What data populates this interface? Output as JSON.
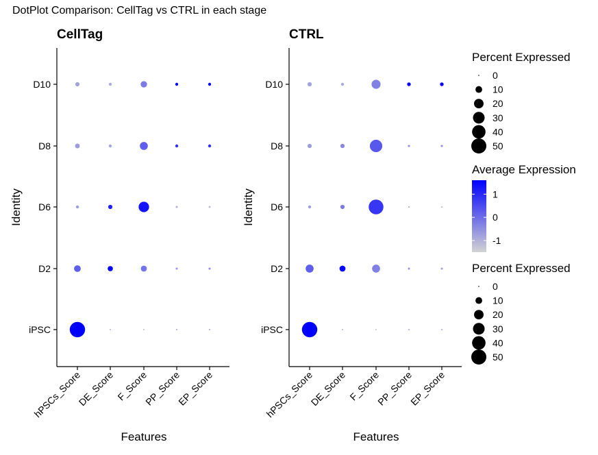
{
  "title": "DotPlot Comparison: CellTag vs CTRL in each stage",
  "colors": {
    "low": "#d3d3d3",
    "high": "#0000ff"
  },
  "chart_data": {
    "type": "dotplot",
    "features": [
      "hPSCs_Score",
      "DE_Score",
      "F_Score",
      "PP_Score",
      "EP_Score"
    ],
    "identities": [
      "D10",
      "D8",
      "D6",
      "D2",
      "iPSC"
    ],
    "xlabel": "Features",
    "ylabel": "Identity",
    "pct_max": 50,
    "avg_range": [
      -1.5,
      1.6
    ],
    "panels": [
      {
        "title": "CellTag",
        "pct": [
          [
            4,
            2,
            9,
            2,
            2
          ],
          [
            5,
            2,
            14,
            2,
            2
          ],
          [
            2,
            4,
            24,
            1,
            1
          ],
          [
            10,
            6,
            8,
            1,
            1
          ],
          [
            52,
            0.5,
            0.5,
            0.5,
            0.5
          ]
        ],
        "avg": [
          [
            -0.8,
            -0.9,
            -0.2,
            1.5,
            1.5
          ],
          [
            -0.7,
            -0.8,
            0.2,
            0.9,
            0.9
          ],
          [
            -0.7,
            1.1,
            1.3,
            -1.0,
            -1.2
          ],
          [
            0.2,
            1.5,
            -0.1,
            -0.6,
            -0.5
          ],
          [
            1.6,
            -1.2,
            -1.3,
            -1.0,
            -1.0
          ]
        ]
      },
      {
        "title": "CTRL",
        "pct": [
          [
            4,
            2,
            18,
            3,
            3
          ],
          [
            4,
            4,
            34,
            1,
            1
          ],
          [
            2,
            4,
            48,
            0.5,
            0.5
          ],
          [
            14,
            8,
            14,
            1,
            1
          ],
          [
            52,
            0.5,
            0.5,
            0.5,
            0.5
          ]
        ],
        "avg": [
          [
            -0.8,
            -0.9,
            -0.3,
            1.5,
            1.5
          ],
          [
            -0.7,
            -0.4,
            0.3,
            -0.5,
            -0.5
          ],
          [
            -0.7,
            -0.2,
            0.8,
            -1.0,
            -1.2
          ],
          [
            0.2,
            1.5,
            -0.3,
            -0.6,
            -0.8
          ],
          [
            1.6,
            -1.2,
            -1.4,
            -1.0,
            -1.0
          ]
        ]
      }
    ],
    "legends": {
      "size_title": "Percent Expressed",
      "size_values": [
        0,
        10,
        20,
        30,
        40,
        50
      ],
      "color_title": "Average Expression",
      "color_ticks": [
        1,
        0,
        -1
      ]
    }
  }
}
